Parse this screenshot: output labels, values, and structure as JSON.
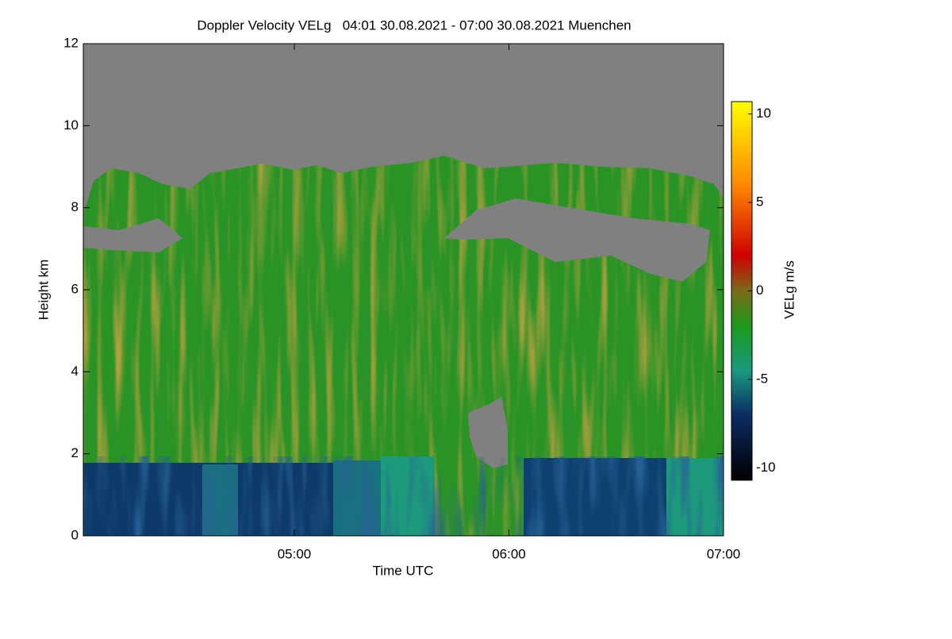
{
  "chart_data": {
    "type": "heatmap",
    "title": "Doppler Velocity VELg   04:01 30.08.2021 - 07:00 30.08.2021 Muenchen",
    "xlabel": "Time UTC",
    "ylabel": "Height km",
    "xlim": [
      {
        "value": 241,
        "label": "04:01"
      },
      {
        "value": 420,
        "label": "07:00"
      }
    ],
    "xticks": [
      {
        "value": 300,
        "label": "05:00"
      },
      {
        "value": 360,
        "label": "06:00"
      },
      {
        "value": 420,
        "label": "07:00"
      }
    ],
    "ylim": [
      0,
      12
    ],
    "yticks": [
      0,
      2,
      4,
      6,
      8,
      10,
      12
    ],
    "colorbar_label": "VELg m/s",
    "clim": [
      -10.7,
      10.7
    ],
    "cticks": [
      -10,
      -5,
      0,
      5,
      10
    ],
    "colormap": [
      {
        "value": -10.7,
        "color": "#000000"
      },
      {
        "value": -7,
        "color": "#0b2c63"
      },
      {
        "value": -4.5,
        "color": "#1a9a80"
      },
      {
        "value": -2,
        "color": "#1a9a1a"
      },
      {
        "value": 0,
        "color": "#7a6a1a"
      },
      {
        "value": 2,
        "color": "#d00000"
      },
      {
        "value": 6,
        "color": "#ff8800"
      },
      {
        "value": 10.7,
        "color": "#ffff00"
      }
    ]
  }
}
